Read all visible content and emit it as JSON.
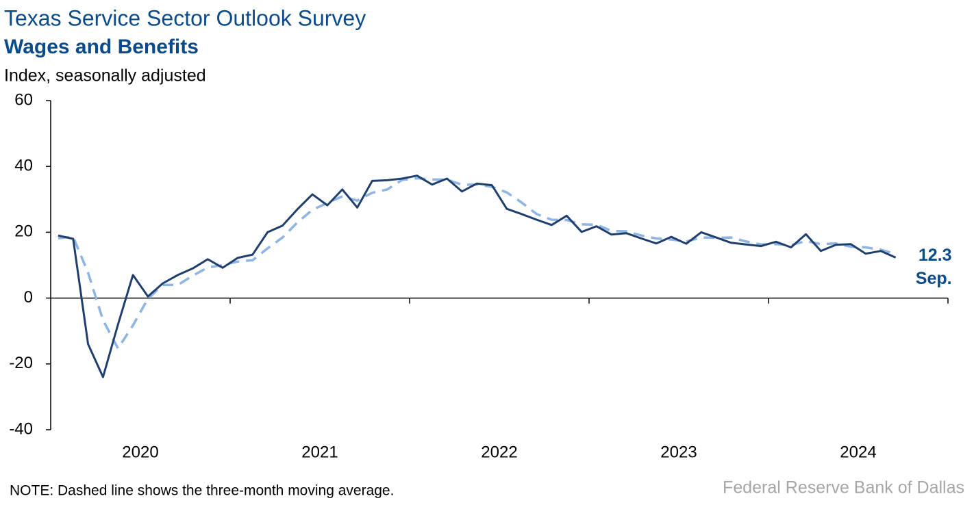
{
  "chart_data": {
    "type": "line",
    "title": "Texas Service Sector Outlook Survey",
    "subtitle": "Wages and Benefits",
    "ylabel": "Index, seasonally adjusted",
    "note": "NOTE: Dashed line shows the three-month moving average.",
    "source": "Federal Reserve Bank of Dallas",
    "annotation": "Sep.",
    "categories": [
      null,
      null,
      null,
      null,
      null,
      null,
      "2020",
      null,
      null,
      null,
      null,
      null,
      null,
      null,
      null,
      null,
      null,
      null,
      "2021",
      null,
      null,
      null,
      null,
      null,
      null,
      null,
      null,
      null,
      null,
      null,
      "2022",
      null,
      null,
      null,
      null,
      null,
      null,
      null,
      null,
      null,
      null,
      null,
      "2023",
      null,
      null,
      null,
      null,
      null,
      null,
      null,
      null,
      null,
      null,
      null,
      "2024",
      null,
      null,
      null,
      null,
      null
    ],
    "series": [
      {
        "name": "Index",
        "color": "#1f3f6e",
        "dashed": false,
        "values": [
          19.0,
          18.0,
          -14,
          -24,
          -8,
          7,
          0.5,
          4.5,
          7,
          9,
          11.8,
          9.2,
          12.2,
          13.2,
          20,
          22,
          27,
          31.5,
          28.2,
          33,
          27.5,
          35.6,
          35.8,
          36.3,
          37.2,
          34.5,
          36.3,
          32.4,
          34.8,
          34.3,
          27.1,
          25.5,
          23.8,
          22.2,
          25.0,
          20.1,
          21.8,
          19.3,
          19.7,
          18.1,
          16.6,
          18.6,
          16.5,
          20.0,
          18.4,
          16.8,
          16.3,
          15.8,
          17.1,
          15.4,
          19.4,
          14.3,
          16.2,
          16.4,
          13.5,
          14.3,
          12.3,
          null,
          null,
          null
        ]
      },
      {
        "name": "Three-month moving average",
        "color": "#8eb4e3",
        "dashed": true,
        "values": [
          18.2,
          18.6,
          7.7,
          -6.7,
          -15.3,
          -8.3,
          -0.2,
          4.0,
          4.0,
          6.8,
          9.3,
          10.0,
          11.1,
          11.5,
          15.1,
          18.4,
          23.0,
          26.8,
          28.9,
          30.9,
          29.6,
          32.0,
          33.0,
          35.9,
          36.4,
          36.0,
          36.0,
          34.4,
          34.5,
          33.8,
          32.1,
          29.0,
          25.5,
          23.8,
          23.7,
          22.4,
          22.3,
          20.4,
          20.3,
          19.0,
          18.1,
          17.8,
          17.2,
          18.4,
          18.3,
          18.4,
          17.2,
          16.3,
          16.4,
          16.1,
          17.3,
          16.4,
          16.6,
          15.6,
          15.4,
          14.7,
          13.4,
          null,
          null,
          null
        ]
      }
    ],
    "ylim": [
      -40,
      60
    ],
    "yticks": [
      -40,
      -20,
      0,
      20,
      40,
      60
    ],
    "grid": false
  }
}
